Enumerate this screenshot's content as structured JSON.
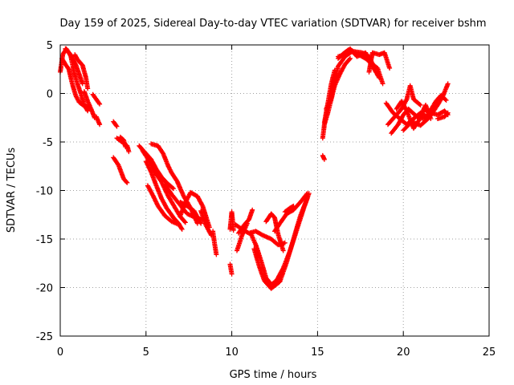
{
  "chart_data": {
    "type": "scatter",
    "title": "Day 159 of 2025, Sidereal Day-to-day VTEC variation (SDTVAR) for receiver bshm",
    "xlabel": "GPS time / hours",
    "ylabel": "SDTVAR / TECUs",
    "xlim": [
      0,
      25
    ],
    "ylim": [
      -25,
      5
    ],
    "xticks": [
      0,
      5,
      10,
      15,
      20,
      25
    ],
    "yticks": [
      -25,
      -20,
      -15,
      -10,
      -5,
      0,
      5
    ],
    "grid": true,
    "marker": "+",
    "series_color": "#ff0000",
    "tracks": [
      [
        [
          0.0,
          2.2
        ],
        [
          0.15,
          4.0
        ],
        [
          0.35,
          4.6
        ],
        [
          0.6,
          4.0
        ],
        [
          0.8,
          2.2
        ],
        [
          1.0,
          1.0
        ],
        [
          1.2,
          0.0
        ],
        [
          1.4,
          -1.2
        ],
        [
          1.6,
          -1.8
        ]
      ],
      [
        [
          0.1,
          3.6
        ],
        [
          0.3,
          3.0
        ],
        [
          0.5,
          2.5
        ],
        [
          0.7,
          1.0
        ],
        [
          0.9,
          -0.2
        ],
        [
          1.1,
          -0.9
        ],
        [
          1.4,
          -1.3
        ],
        [
          1.7,
          -1.4
        ]
      ],
      [
        [
          0.3,
          4.6
        ],
        [
          0.5,
          4.2
        ],
        [
          0.7,
          3.6
        ],
        [
          0.9,
          3.0
        ],
        [
          1.1,
          2.0
        ],
        [
          1.3,
          1.0
        ]
      ],
      [
        [
          0.85,
          4.0
        ],
        [
          1.0,
          3.5
        ],
        [
          1.3,
          2.9
        ],
        [
          1.5,
          1.6
        ],
        [
          1.6,
          0.5
        ]
      ],
      [
        [
          1.4,
          0.2
        ],
        [
          1.6,
          -0.8
        ],
        [
          1.8,
          -1.6
        ],
        [
          2.0,
          -2.5
        ]
      ],
      [
        [
          1.9,
          -0.1
        ],
        [
          2.1,
          -0.6
        ],
        [
          2.3,
          -1.1
        ]
      ],
      [
        [
          2.1,
          -2.4
        ],
        [
          2.3,
          -3.2
        ]
      ],
      [
        [
          3.1,
          -2.9
        ],
        [
          3.3,
          -3.4
        ]
      ],
      [
        [
          3.1,
          -6.6
        ],
        [
          3.4,
          -7.4
        ],
        [
          3.7,
          -8.8
        ],
        [
          3.9,
          -9.2
        ]
      ],
      [
        [
          3.3,
          -4.6
        ],
        [
          3.6,
          -5.0
        ],
        [
          3.9,
          -5.4
        ],
        [
          4.0,
          -6.0
        ]
      ],
      [
        [
          3.5,
          -4.5
        ],
        [
          3.7,
          -4.8
        ],
        [
          3.8,
          -5.5
        ]
      ],
      [
        [
          4.6,
          -5.4
        ],
        [
          4.9,
          -6.0
        ],
        [
          5.3,
          -6.8
        ],
        [
          5.6,
          -7.8
        ],
        [
          5.9,
          -8.6
        ],
        [
          6.2,
          -9.2
        ],
        [
          6.6,
          -9.8
        ]
      ],
      [
        [
          4.8,
          -5.9
        ],
        [
          5.2,
          -7.0
        ],
        [
          5.5,
          -8.1
        ],
        [
          5.9,
          -9.1
        ],
        [
          6.3,
          -10.6
        ],
        [
          6.7,
          -11.8
        ],
        [
          7.0,
          -12.7
        ],
        [
          7.3,
          -13.3
        ]
      ],
      [
        [
          5.0,
          -7.0
        ],
        [
          5.3,
          -8.1
        ],
        [
          5.6,
          -9.5
        ],
        [
          5.9,
          -10.8
        ],
        [
          6.2,
          -11.8
        ],
        [
          6.6,
          -12.8
        ],
        [
          6.9,
          -13.4
        ],
        [
          7.1,
          -14.0
        ]
      ],
      [
        [
          5.1,
          -9.5
        ],
        [
          5.4,
          -10.5
        ],
        [
          5.7,
          -11.6
        ],
        [
          6.1,
          -12.6
        ],
        [
          6.5,
          -13.2
        ],
        [
          6.9,
          -13.5
        ]
      ],
      [
        [
          5.3,
          -5.2
        ],
        [
          5.7,
          -5.4
        ],
        [
          6.0,
          -6.2
        ],
        [
          6.3,
          -7.5
        ],
        [
          6.5,
          -8.2
        ],
        [
          6.8,
          -9.0
        ],
        [
          7.2,
          -10.6
        ],
        [
          7.6,
          -11.8
        ],
        [
          8.0,
          -13.4
        ]
      ],
      [
        [
          6.1,
          -9.4
        ],
        [
          6.5,
          -10.4
        ],
        [
          6.9,
          -11.3
        ],
        [
          7.4,
          -12.4
        ],
        [
          7.9,
          -12.8
        ],
        [
          8.3,
          -13.0
        ]
      ],
      [
        [
          7.0,
          -11.2
        ],
        [
          7.4,
          -11.6
        ],
        [
          7.8,
          -12.1
        ],
        [
          8.2,
          -13.4
        ]
      ],
      [
        [
          7.0,
          -12.6
        ],
        [
          7.3,
          -11.2
        ],
        [
          7.6,
          -10.2
        ],
        [
          8.0,
          -10.6
        ],
        [
          8.3,
          -11.6
        ],
        [
          8.7,
          -13.8
        ]
      ],
      [
        [
          8.2,
          -12.1
        ],
        [
          8.5,
          -13.6
        ],
        [
          8.8,
          -14.6
        ]
      ],
      [
        [
          8.9,
          -14.2
        ],
        [
          9.0,
          -15.5
        ],
        [
          9.1,
          -16.6
        ]
      ],
      [
        [
          9.9,
          -17.6
        ],
        [
          10.0,
          -18.6
        ]
      ],
      [
        [
          9.9,
          -14.0
        ],
        [
          10.0,
          -12.2
        ],
        [
          10.1,
          -14.1
        ]
      ],
      [
        [
          10.4,
          -14.4
        ],
        [
          10.7,
          -13.6
        ],
        [
          11.0,
          -13.0
        ],
        [
          11.2,
          -12.0
        ]
      ],
      [
        [
          10.3,
          -16.2
        ],
        [
          10.6,
          -14.6
        ],
        [
          10.9,
          -13.4
        ]
      ],
      [
        [
          10.2,
          -13.5
        ],
        [
          10.6,
          -14.0
        ],
        [
          11.0,
          -14.4
        ],
        [
          11.4,
          -14.2
        ],
        [
          11.8,
          -14.6
        ],
        [
          12.3,
          -15.0
        ],
        [
          12.7,
          -15.6
        ],
        [
          13.1,
          -15.4
        ]
      ],
      [
        [
          11.1,
          -14.4
        ],
        [
          11.4,
          -15.6
        ],
        [
          11.7,
          -17.2
        ],
        [
          12.0,
          -19.0
        ],
        [
          12.3,
          -19.7
        ],
        [
          12.6,
          -19.3
        ],
        [
          13.0,
          -18.0
        ],
        [
          13.4,
          -16.2
        ],
        [
          13.8,
          -14.0
        ],
        [
          14.2,
          -11.8
        ],
        [
          14.5,
          -10.3
        ]
      ],
      [
        [
          11.3,
          -16.0
        ],
        [
          11.6,
          -17.8
        ],
        [
          11.9,
          -19.3
        ],
        [
          12.3,
          -20.1
        ],
        [
          12.8,
          -19.4
        ],
        [
          13.2,
          -17.4
        ],
        [
          13.6,
          -15.0
        ],
        [
          14.0,
          -12.6
        ],
        [
          14.4,
          -10.8
        ]
      ],
      [
        [
          12.0,
          -13.2
        ],
        [
          12.3,
          -12.4
        ],
        [
          12.5,
          -12.8
        ],
        [
          12.7,
          -14.5
        ],
        [
          13.0,
          -16.2
        ]
      ],
      [
        [
          12.5,
          -14.2
        ],
        [
          12.8,
          -13.4
        ],
        [
          13.2,
          -12.4
        ],
        [
          13.6,
          -12.0
        ],
        [
          14.0,
          -11.2
        ],
        [
          14.4,
          -10.3
        ]
      ],
      [
        [
          13.1,
          -12.2
        ],
        [
          13.4,
          -11.8
        ],
        [
          13.6,
          -11.6
        ]
      ],
      [
        [
          15.3,
          -6.4
        ],
        [
          15.4,
          -6.8
        ]
      ],
      [
        [
          15.3,
          -4.6
        ],
        [
          15.4,
          -3.2
        ],
        [
          15.6,
          -2.0
        ],
        [
          15.8,
          -0.6
        ],
        [
          16.0,
          0.8
        ],
        [
          16.3,
          2.0
        ],
        [
          16.6,
          3.0
        ],
        [
          16.9,
          3.6
        ]
      ],
      [
        [
          15.5,
          -1.6
        ],
        [
          15.8,
          -0.4
        ],
        [
          16.0,
          1.2
        ],
        [
          16.2,
          2.8
        ],
        [
          16.6,
          3.8
        ],
        [
          17.0,
          4.3
        ],
        [
          17.4,
          4.0
        ],
        [
          17.8,
          3.6
        ],
        [
          18.2,
          3.0
        ],
        [
          18.5,
          2.6
        ],
        [
          18.8,
          1.0
        ]
      ],
      [
        [
          15.4,
          -3.0
        ],
        [
          15.6,
          -1.0
        ],
        [
          15.8,
          1.0
        ],
        [
          16.0,
          2.4
        ]
      ],
      [
        [
          16.2,
          3.6
        ],
        [
          16.5,
          4.1
        ],
        [
          16.8,
          4.5
        ],
        [
          17.2,
          4.3
        ],
        [
          17.6,
          4.2
        ],
        [
          18.0,
          3.8
        ],
        [
          18.3,
          2.7
        ]
      ],
      [
        [
          16.2,
          3.8
        ],
        [
          16.6,
          4.0
        ],
        [
          16.9,
          4.6
        ],
        [
          17.3,
          3.8
        ],
        [
          17.8,
          4.2
        ],
        [
          18.2,
          2.8
        ],
        [
          18.6,
          1.6
        ]
      ],
      [
        [
          18.0,
          2.2
        ],
        [
          18.2,
          4.2
        ],
        [
          18.6,
          4.0
        ],
        [
          18.9,
          4.2
        ],
        [
          19.2,
          2.6
        ]
      ],
      [
        [
          19.0,
          -1.0
        ],
        [
          19.4,
          -2.0
        ],
        [
          19.8,
          -2.6
        ],
        [
          20.2,
          -3.2
        ],
        [
          20.6,
          -2.6
        ],
        [
          21.0,
          -2.0
        ],
        [
          21.4,
          -2.4
        ]
      ],
      [
        [
          19.1,
          -3.2
        ],
        [
          19.5,
          -2.4
        ],
        [
          19.9,
          -1.6
        ],
        [
          20.2,
          -0.6
        ],
        [
          20.4,
          0.8
        ],
        [
          20.6,
          -0.6
        ],
        [
          21.0,
          -1.2
        ]
      ],
      [
        [
          19.3,
          -4.1
        ],
        [
          19.7,
          -3.2
        ],
        [
          20.0,
          -2.2
        ],
        [
          20.3,
          -1.6
        ],
        [
          20.8,
          -2.4
        ],
        [
          21.2,
          -2.6
        ],
        [
          21.6,
          -2.0
        ],
        [
          22.0,
          -2.2
        ],
        [
          22.4,
          -1.8
        ],
        [
          22.6,
          -2.2
        ]
      ],
      [
        [
          19.6,
          -1.6
        ],
        [
          19.9,
          -0.8
        ],
        [
          20.2,
          -1.8
        ],
        [
          20.6,
          -3.6
        ],
        [
          20.9,
          -2.8
        ],
        [
          21.3,
          -1.2
        ],
        [
          21.6,
          -2.6
        ]
      ],
      [
        [
          20.0,
          -3.8
        ],
        [
          20.5,
          -2.9
        ],
        [
          21.0,
          -3.3
        ],
        [
          21.5,
          -2.5
        ],
        [
          22.0,
          -1.2
        ],
        [
          22.3,
          -0.3
        ],
        [
          22.6,
          1.0
        ]
      ],
      [
        [
          21.2,
          -1.6
        ],
        [
          21.5,
          -2.0
        ],
        [
          21.9,
          -0.8
        ],
        [
          22.2,
          -0.2
        ],
        [
          22.5,
          -0.7
        ]
      ],
      [
        [
          22.0,
          -2.6
        ],
        [
          22.4,
          -2.4
        ],
        [
          22.6,
          -2.0
        ]
      ]
    ]
  }
}
